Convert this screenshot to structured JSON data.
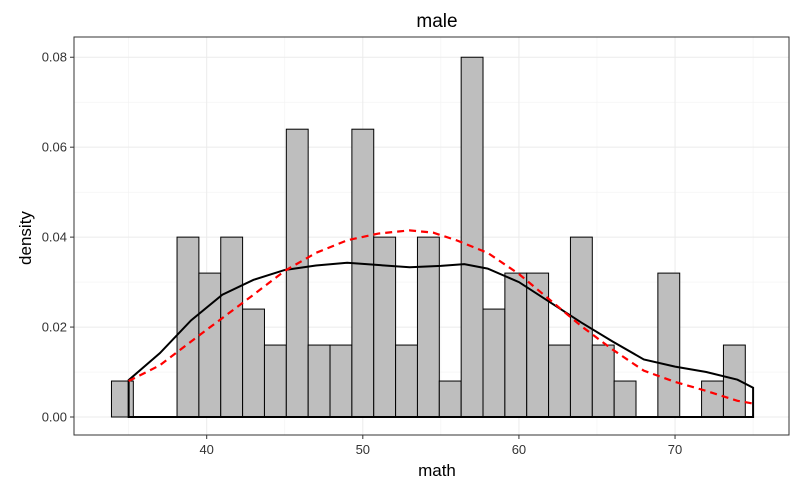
{
  "chart_data": {
    "type": "bar",
    "title": "male",
    "xlabel": "math",
    "ylabel": "density",
    "xlim": [
      31.5,
      77.3
    ],
    "ylim": [
      -0.004,
      0.0845
    ],
    "x_ticks": [
      40,
      50,
      60,
      70
    ],
    "y_ticks": [
      0.0,
      0.02,
      0.04,
      0.06,
      0.08
    ],
    "y_tick_labels": [
      "0.00",
      "0.02",
      "0.04",
      "0.06",
      "0.08"
    ],
    "grid": true,
    "histogram": {
      "bin_width": 1.4,
      "bin_start": 33.9,
      "fill": "#bebebe",
      "edge": "#000000",
      "densities": [
        0.008,
        0,
        0,
        0.04,
        0.032,
        0.04,
        0.024,
        0.016,
        0.064,
        0.016,
        0.016,
        0.064,
        0.04,
        0.016,
        0.04,
        0.008,
        0.08,
        0.024,
        0.032,
        0.032,
        0.016,
        0.04,
        0.016,
        0.008,
        0,
        0.032,
        0,
        0.008,
        0.016
      ]
    },
    "series": [
      {
        "kind": "kernel-density",
        "color": "#000000",
        "line": "solid",
        "points": [
          [
            35.0,
            0.0082
          ],
          [
            37.0,
            0.0142
          ],
          [
            39.0,
            0.0215
          ],
          [
            41.0,
            0.0272
          ],
          [
            43.0,
            0.0305
          ],
          [
            45.0,
            0.0327
          ],
          [
            47.0,
            0.0337
          ],
          [
            49.0,
            0.0343
          ],
          [
            51.0,
            0.0338
          ],
          [
            53.0,
            0.0333
          ],
          [
            55.0,
            0.0336
          ],
          [
            56.5,
            0.034
          ],
          [
            58.0,
            0.033
          ],
          [
            60.0,
            0.03
          ],
          [
            62.0,
            0.0255
          ],
          [
            64.0,
            0.021
          ],
          [
            66.0,
            0.0168
          ],
          [
            68.0,
            0.0128
          ],
          [
            70.0,
            0.0112
          ],
          [
            72.0,
            0.01
          ],
          [
            74.0,
            0.0083
          ],
          [
            75.0,
            0.0065
          ]
        ]
      },
      {
        "kind": "normal-density",
        "color": "#ff0000",
        "line": "dashed",
        "points": [
          [
            35.0,
            0.008
          ],
          [
            37.0,
            0.0115
          ],
          [
            39.0,
            0.0168
          ],
          [
            41.0,
            0.022
          ],
          [
            43.0,
            0.0272
          ],
          [
            45.0,
            0.0325
          ],
          [
            47.0,
            0.0365
          ],
          [
            49.0,
            0.0393
          ],
          [
            51.0,
            0.0408
          ],
          [
            53.0,
            0.0415
          ],
          [
            54.5,
            0.041
          ],
          [
            56.0,
            0.0393
          ],
          [
            58.0,
            0.0365
          ],
          [
            60.0,
            0.0318
          ],
          [
            62.0,
            0.026
          ],
          [
            64.0,
            0.0202
          ],
          [
            66.0,
            0.015
          ],
          [
            68.0,
            0.0103
          ],
          [
            70.0,
            0.0078
          ],
          [
            72.0,
            0.0058
          ],
          [
            74.0,
            0.0036
          ],
          [
            75.0,
            0.003
          ]
        ]
      }
    ],
    "kde_range": [
      35.0,
      75.0
    ]
  }
}
